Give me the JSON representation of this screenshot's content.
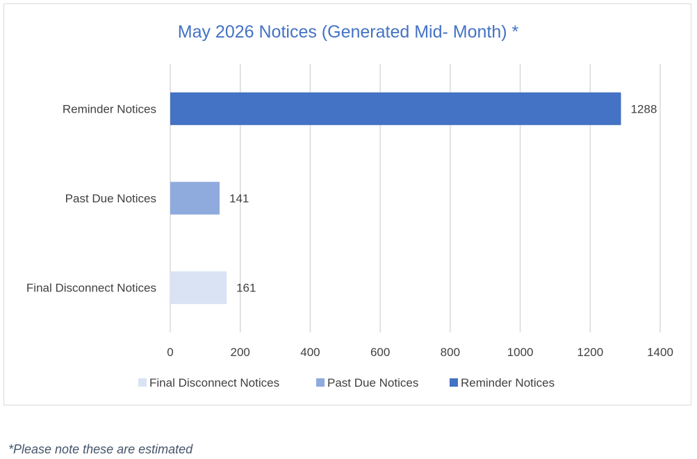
{
  "chart_data": {
    "type": "bar",
    "orientation": "horizontal",
    "title": "May 2026 Notices (Generated Mid- Month) *",
    "xlabel": "",
    "ylabel": "",
    "xlim": [
      0,
      1400
    ],
    "x_ticks": [
      0,
      200,
      400,
      600,
      800,
      1000,
      1200,
      1400
    ],
    "grid": "vertical",
    "legend_position": "bottom",
    "categories": [
      "Reminder Notices",
      "Past Due Notices",
      "Final Disconnect Notices"
    ],
    "values": [
      1288,
      141,
      161
    ],
    "colors": [
      "#4472c4",
      "#8faadc",
      "#dae3f3"
    ],
    "legend": [
      {
        "label": "Final Disconnect Notices",
        "color": "#dae3f3"
      },
      {
        "label": "Past Due Notices",
        "color": "#8faadc"
      },
      {
        "label": "Reminder Notices",
        "color": "#4472c4"
      }
    ],
    "title_color": "#4472c4",
    "text_color": "#404040",
    "gridline_color": "#d9d9d9"
  },
  "footnote": "*Please note these are estimated"
}
